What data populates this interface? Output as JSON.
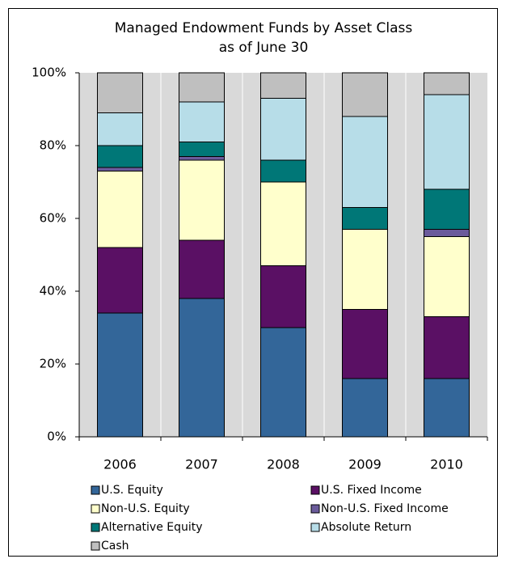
{
  "chart_data": {
    "type": "stacked_bar",
    "title": "Managed Endowment Funds by Asset Class",
    "subtitle": "as of June 30",
    "categories": [
      "2006",
      "2007",
      "2008",
      "2009",
      "2010"
    ],
    "series": [
      {
        "name": "U.S. Equity",
        "color": "#336699",
        "values": [
          34,
          38,
          30,
          16,
          16
        ]
      },
      {
        "name": "U.S. Fixed Income",
        "color": "#5a1064",
        "values": [
          18,
          16,
          17,
          19,
          17
        ]
      },
      {
        "name": "Non-U.S. Equity",
        "color": "#ffffcc",
        "values": [
          21,
          22,
          23,
          22,
          22
        ]
      },
      {
        "name": "Non-U.S. Fixed Income",
        "color": "#6b5b9b",
        "values": [
          1,
          1,
          0,
          0,
          2
        ]
      },
      {
        "name": "Alternative Equity",
        "color": "#007777",
        "values": [
          6,
          4,
          6,
          6,
          11
        ]
      },
      {
        "name": "Absolute Return",
        "color": "#b7dde8",
        "values": [
          9,
          11,
          17,
          25,
          26
        ]
      },
      {
        "name": "Cash",
        "color": "#bfbfbf",
        "values": [
          11,
          8,
          7,
          12,
          6
        ]
      }
    ],
    "ylim": [
      0,
      100
    ],
    "yticks": [
      {
        "value": 0,
        "label": "0%"
      },
      {
        "value": 20,
        "label": "20%"
      },
      {
        "value": 40,
        "label": "40%"
      },
      {
        "value": 60,
        "label": "60%"
      },
      {
        "value": 80,
        "label": "80%"
      },
      {
        "value": 100,
        "label": "100%"
      }
    ]
  }
}
